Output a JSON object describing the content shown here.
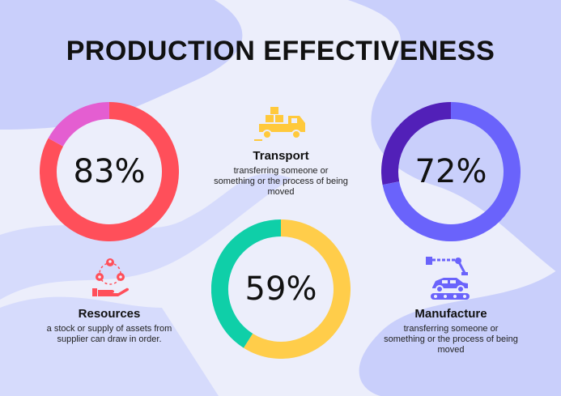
{
  "page_title": "PRODUCTION EFFECTIVENESS",
  "chart_data": [
    {
      "type": "pie",
      "title": "",
      "value_label": "83%",
      "values": [
        83,
        17
      ],
      "colors": [
        "#ff4f5a",
        "#e45ed1"
      ]
    },
    {
      "type": "pie",
      "title": "",
      "value_label": "72%",
      "values": [
        72,
        28
      ],
      "colors": [
        "#6a63fb",
        "#5220b8"
      ]
    },
    {
      "type": "pie",
      "title": "",
      "value_label": "59%",
      "values": [
        59,
        41
      ],
      "colors": [
        "#ffcd4a",
        "#0fcfa8"
      ]
    }
  ],
  "sections": {
    "transport": {
      "name": "Transport",
      "desc": "transferring someone or something or the process of being moved",
      "icon": "delivery-truck-icon"
    },
    "resources": {
      "name": "Resources",
      "desc": "a stock or supply of assets from supplier can draw in order.",
      "icon": "resources-hand-icon"
    },
    "manufacture": {
      "name": "Manufacture",
      "desc": "transferring someone or something or the process of being moved",
      "icon": "robot-arm-car-icon"
    }
  },
  "colors": {
    "background": "#eceefb",
    "blob": "#c9cffb",
    "title": "#111111",
    "icon_yellow": "#ffc93c",
    "icon_red": "#ff4f5a",
    "icon_blue": "#6a63fb"
  }
}
